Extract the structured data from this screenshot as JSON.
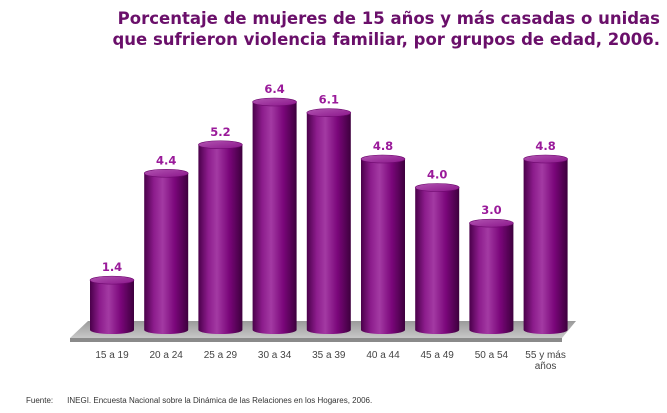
{
  "title_lines": [
    "Porcentaje de mujeres de 15 años y más casadas o unidas",
    "que sufrieron violencia familiar, por grupos de edad, 2006."
  ],
  "source": {
    "label": "Fuente:",
    "text": "INEGI. Encuesta Nacional sobre la Dinámica de las Relaciones en los Hogares, 2006."
  },
  "colors": {
    "bar": "#800080",
    "title": "#6a0f6a",
    "value_label": "#9a1a9a",
    "floor": "#b5b5b5"
  },
  "chart_data": {
    "type": "bar",
    "title": "Porcentaje de mujeres de 15 años y más casadas o unidas que sufrieron violencia familiar, por grupos de edad, 2006.",
    "categories": [
      "15 a 19",
      "20 a 24",
      "25 a 29",
      "30 a 34",
      "35 a 39",
      "40 a 44",
      "45 a 49",
      "50 a 54",
      "55 y más años"
    ],
    "category_lines": [
      [
        "15 a 19"
      ],
      [
        "20 a 24"
      ],
      [
        "25 a 29"
      ],
      [
        "30 a 34"
      ],
      [
        "35 a 39"
      ],
      [
        "40 a 44"
      ],
      [
        "45 a 49"
      ],
      [
        "50 a 54"
      ],
      [
        "55 y más",
        "años"
      ]
    ],
    "values": [
      1.4,
      4.4,
      5.2,
      6.4,
      6.1,
      4.8,
      4.0,
      3.0,
      4.8
    ],
    "value_labels": [
      "1.4",
      "4.4",
      "5.2",
      "6.4",
      "6.1",
      "4.8",
      "4.0",
      "3.0",
      "4.8"
    ],
    "ylim": [
      0,
      6.4
    ],
    "xlabel": "",
    "ylabel": "",
    "grid": false,
    "legend": "none",
    "style": "3d-cylinder"
  }
}
